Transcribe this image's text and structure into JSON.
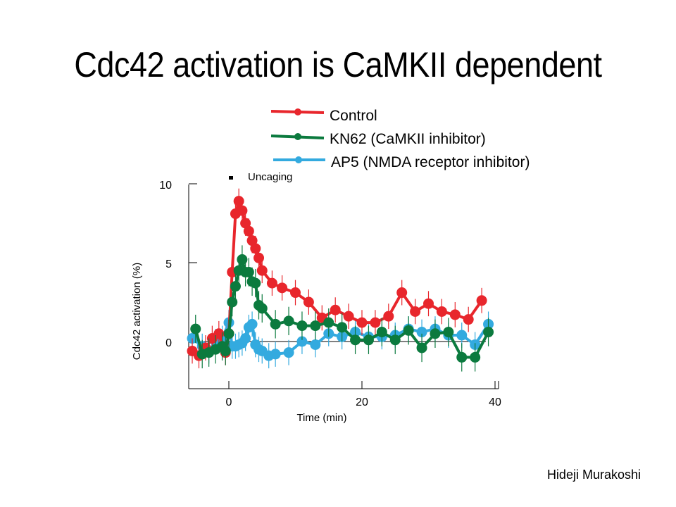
{
  "title": "Cdc42 activation is CaMKII dependent",
  "credit": "Hideji Murakoshi",
  "colors": {
    "control": "#e8262c",
    "kn62": "#0b7a3e",
    "ap5": "#33aadf",
    "axis": "#000000"
  },
  "chart_data": {
    "type": "line",
    "xlabel": "Time (min)",
    "ylabel": "Cdc42 activation (%)",
    "xlim": [
      -6,
      41
    ],
    "ylim": [
      -3,
      10
    ],
    "xticks": [
      0,
      20,
      40
    ],
    "yticks": [
      0,
      5,
      10
    ],
    "annotations": [
      {
        "text": "Uncaging",
        "x_start": 0,
        "x_end": 0.6
      }
    ],
    "legend_position": "top",
    "series": [
      {
        "name": "Control",
        "color_key": "control",
        "err": 0.8,
        "x": [
          -5.5,
          -4.5,
          -3.5,
          -2.5,
          -1.5,
          -0.5,
          0,
          0.5,
          1,
          1.5,
          2,
          2.5,
          3,
          3.5,
          4,
          4.5,
          5,
          6.5,
          8,
          10,
          12,
          14,
          16,
          18,
          20,
          22,
          24,
          26,
          28,
          30,
          32,
          34,
          36,
          38
        ],
        "y": [
          -0.6,
          -0.9,
          -0.4,
          0.2,
          0.5,
          -0.7,
          0.5,
          4.4,
          8.1,
          8.9,
          8.3,
          7.5,
          7.0,
          6.4,
          5.9,
          5.3,
          4.5,
          3.7,
          3.4,
          3.1,
          2.5,
          1.5,
          2.0,
          1.6,
          1.2,
          1.2,
          1.6,
          3.1,
          1.9,
          2.4,
          1.9,
          1.7,
          1.4,
          2.6
        ]
      },
      {
        "name": "KN62  (CaMKII inhibitor)",
        "color_key": "kn62",
        "err": 0.9,
        "x": [
          -5,
          -4,
          -3,
          -2,
          -1,
          -0.5,
          0,
          0.5,
          1,
          1.5,
          2,
          2.5,
          3,
          3.5,
          4,
          4.5,
          5,
          7,
          9,
          11,
          13,
          15,
          17,
          19,
          21,
          23,
          25,
          27,
          29,
          31,
          33,
          35,
          37,
          39
        ],
        "y": [
          0.8,
          -0.8,
          -0.7,
          -0.5,
          -0.3,
          -0.6,
          0.5,
          2.5,
          3.5,
          4.5,
          5.2,
          4.4,
          4.4,
          3.8,
          3.7,
          2.3,
          2.1,
          1.1,
          1.3,
          1.0,
          1.0,
          1.2,
          0.9,
          0.1,
          0.1,
          0.6,
          0.1,
          0.7,
          -0.4,
          0.5,
          0.6,
          -1.0,
          -1.0,
          0.6
        ]
      },
      {
        "name": "AP5 (NMDA receptor inhibitor)",
        "color_key": "ap5",
        "err": 0.8,
        "x": [
          -5.5,
          -4,
          -3,
          -2,
          -1,
          0,
          0.5,
          1,
          1.5,
          2,
          2.5,
          3,
          3.5,
          4,
          4.5,
          5,
          6,
          7,
          9,
          11,
          13,
          15,
          17,
          19,
          21,
          23,
          25,
          27,
          29,
          31,
          33,
          35,
          37,
          39
        ],
        "y": [
          0.2,
          -0.3,
          -0.6,
          0.0,
          0.2,
          1.2,
          -0.3,
          -0.3,
          -0.2,
          -0.1,
          0.2,
          0.9,
          1.1,
          -0.2,
          -0.5,
          -0.6,
          -0.9,
          -0.8,
          -0.7,
          0.0,
          -0.2,
          0.5,
          0.3,
          0.6,
          0.3,
          0.3,
          0.4,
          0.8,
          0.6,
          0.8,
          0.4,
          0.4,
          -0.2,
          1.1
        ]
      }
    ]
  }
}
